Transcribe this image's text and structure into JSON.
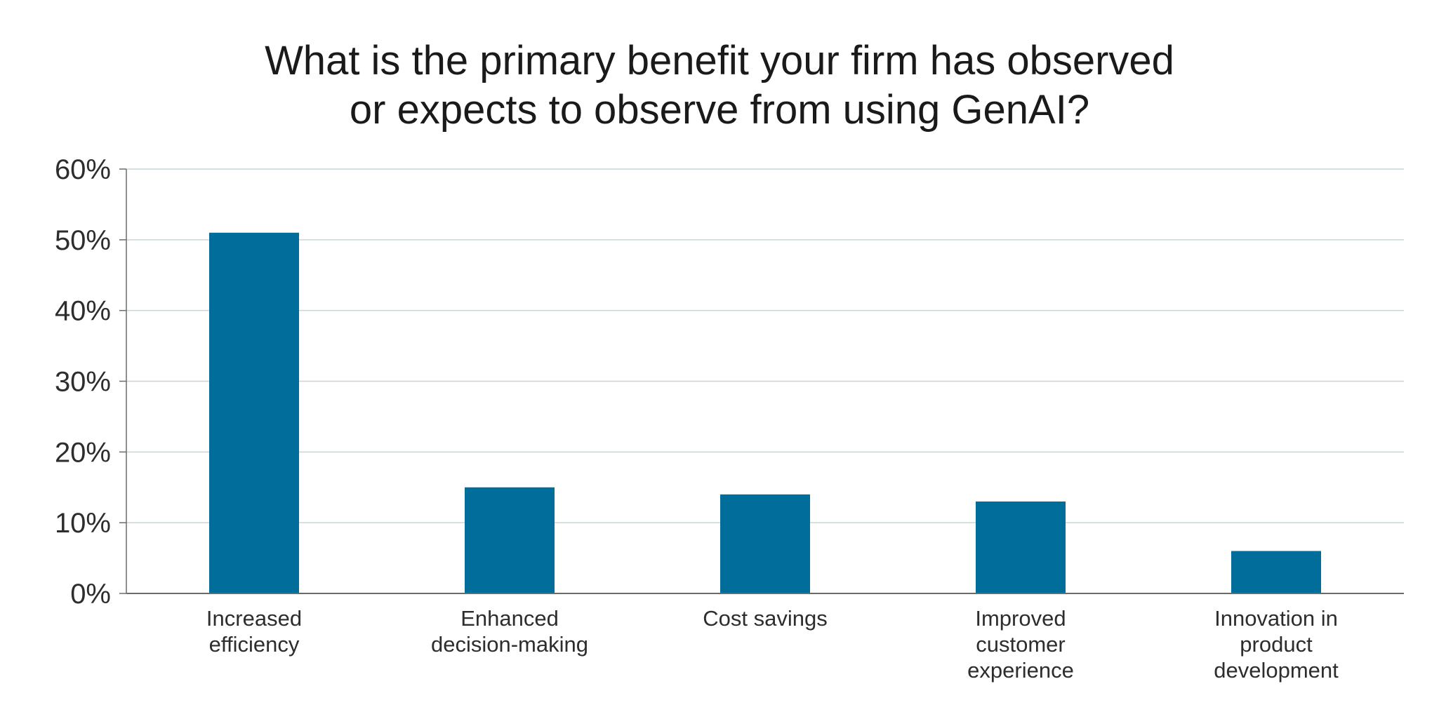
{
  "chart_data": {
    "type": "bar",
    "title_lines": [
      "What is the primary benefit your firm has observed",
      "or expects to observe from using GenAI?"
    ],
    "categories": [
      [
        "Increased",
        "efficiency"
      ],
      [
        "Enhanced",
        "decision-making"
      ],
      [
        "Cost savings"
      ],
      [
        "Improved",
        "customer",
        "experience"
      ],
      [
        "Innovation in",
        "product",
        "development"
      ]
    ],
    "values": [
      51,
      15,
      14,
      13,
      6
    ],
    "y_ticks": [
      "0%",
      "10%",
      "20%",
      "30%",
      "40%",
      "50%",
      "60%"
    ],
    "ylim": [
      0,
      60
    ],
    "xlabel": "",
    "ylabel": "",
    "grid": true,
    "legend": "none",
    "bar_color": "#006d9a",
    "grid_color": "#c8d6d8",
    "axis_color": "#6b6b6b"
  }
}
